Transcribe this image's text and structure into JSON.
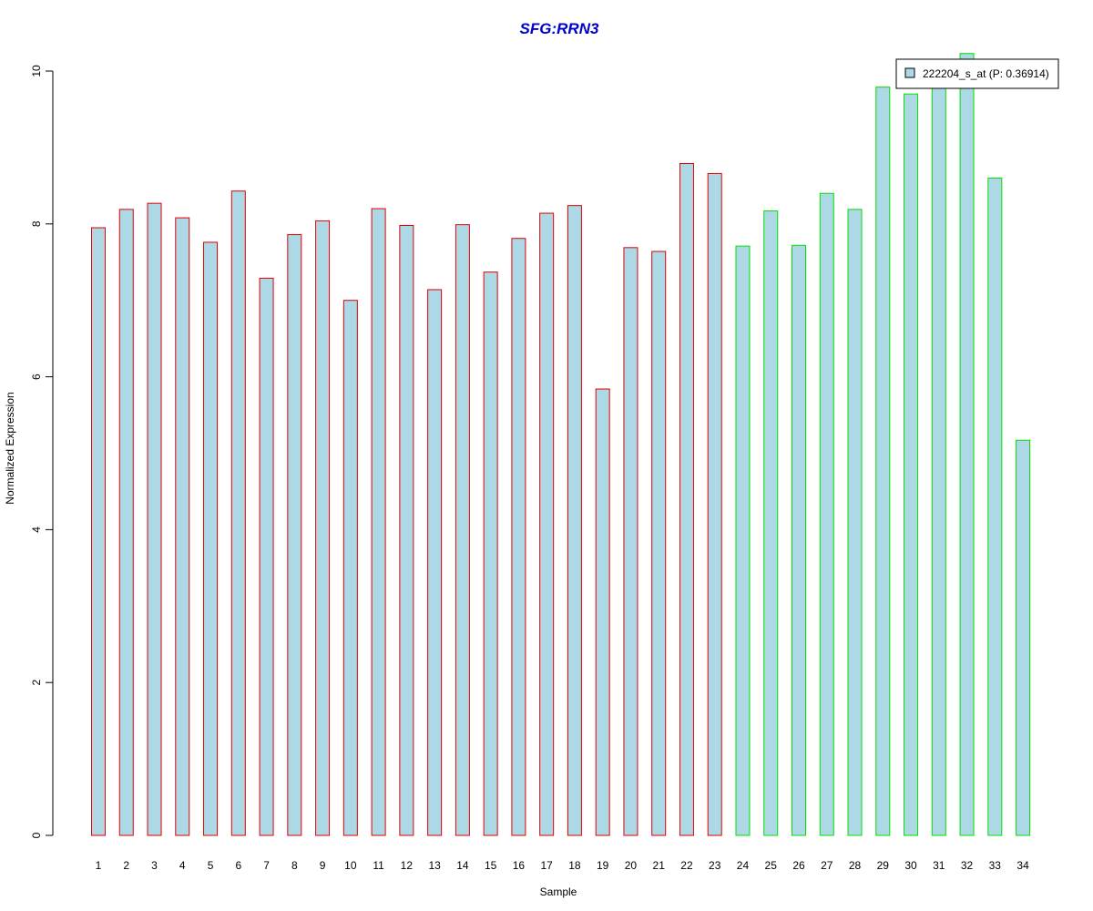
{
  "chart_data": {
    "type": "bar",
    "title": "SFG:RRN3",
    "xlabel": "Sample",
    "ylabel": "Normalized Expression",
    "ylim": [
      0,
      10
    ],
    "yticks": [
      "0",
      "2",
      "4",
      "6",
      "8",
      "10"
    ],
    "categories": [
      "1",
      "2",
      "3",
      "4",
      "5",
      "6",
      "7",
      "8",
      "9",
      "10",
      "11",
      "12",
      "13",
      "14",
      "15",
      "16",
      "17",
      "18",
      "19",
      "20",
      "21",
      "22",
      "23",
      "24",
      "25",
      "26",
      "27",
      "28",
      "29",
      "30",
      "31",
      "32",
      "33",
      "34"
    ],
    "series": [
      {
        "name": "222204_s_at (P: 0.36914)",
        "values": [
          7.95,
          8.19,
          8.27,
          8.08,
          7.76,
          8.43,
          7.29,
          7.86,
          8.04,
          7.0,
          8.2,
          7.98,
          7.14,
          7.99,
          7.37,
          7.81,
          8.14,
          8.24,
          5.84,
          7.69,
          7.64,
          8.79,
          8.66,
          7.71,
          8.17,
          7.72,
          8.4,
          8.19,
          9.79,
          9.7,
          9.82,
          10.23,
          8.6,
          5.17
        ],
        "fill": "#add8e6"
      }
    ],
    "groups": [
      {
        "first": 1,
        "last": 23,
        "border_color": "#e00000"
      },
      {
        "first": 24,
        "last": 34,
        "border_color": "#00e000"
      }
    ],
    "title_color": "#0000cc",
    "legend": {
      "label": "222204_s_at (P: 0.36914)",
      "position": "top-right"
    },
    "grid": false
  }
}
